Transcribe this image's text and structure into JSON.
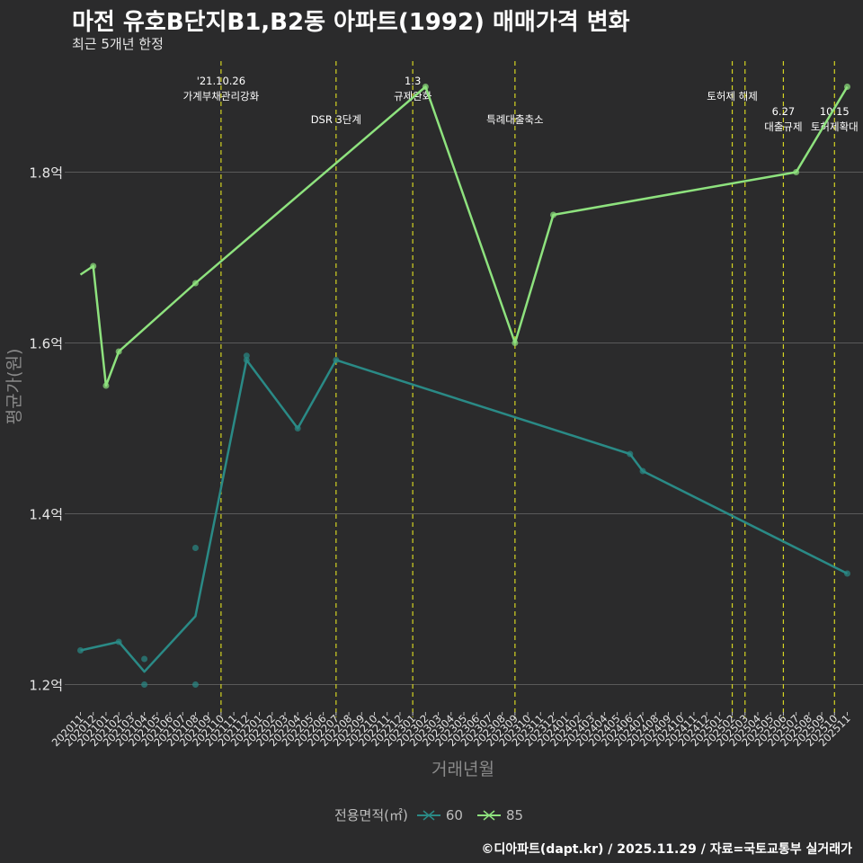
{
  "title": "마전 유호B단지B1,B2동 아파트(1992) 매매가격 변화",
  "subtitle": "최근 5개년 한정",
  "caption": "©디아파트(dapt.kr) / 2025.11.29 / 자료=국토교통부 실거래가",
  "colors": {
    "background": "#2b2b2c",
    "grid": "#5a5a5a",
    "series60": "#2a8a86",
    "series85": "#8ee27e",
    "policy": "#d4d422"
  },
  "chart_data": {
    "type": "line",
    "title": "마전 유호B단지B1,B2동 아파트(1992) 매매가격 변화",
    "xlabel": "거래년월",
    "ylabel": "평균가(원)",
    "legend_title": "전용면적(㎡)",
    "ylim": [
      1.17,
      1.93
    ],
    "yticks": [
      1.2,
      1.4,
      1.6,
      1.8
    ],
    "ytick_labels": [
      "1.2억",
      "1.4억",
      "1.6억",
      "1.8억"
    ],
    "x_categories": [
      "202011",
      "202012",
      "202101",
      "202102",
      "202103",
      "202104",
      "202105",
      "202106",
      "202107",
      "202108",
      "202109",
      "202110",
      "202111",
      "202112",
      "202201",
      "202202",
      "202203",
      "202204",
      "202205",
      "202206",
      "202207",
      "202208",
      "202209",
      "202210",
      "202211",
      "202212",
      "202301",
      "202302",
      "202303",
      "202304",
      "202305",
      "202306",
      "202307",
      "202308",
      "202309",
      "202310",
      "202311",
      "202312",
      "202401",
      "202402",
      "202403",
      "202404",
      "202405",
      "202406",
      "202407",
      "202408",
      "202409",
      "202410",
      "202411",
      "202412",
      "202501",
      "202502",
      "202503",
      "202504",
      "202505",
      "202506",
      "202507",
      "202508",
      "202509",
      "202510",
      "202511"
    ],
    "series": [
      {
        "name": "60",
        "line": [
          [
            "202011",
            1.24
          ],
          [
            "202102",
            1.25
          ],
          [
            "202104",
            1.215
          ],
          [
            "202108",
            1.28
          ],
          [
            "202112",
            1.58
          ],
          [
            "202204",
            1.5
          ],
          [
            "202207",
            1.58
          ],
          [
            "202406",
            1.47
          ],
          [
            "202407",
            1.45
          ],
          [
            "202511",
            1.33
          ]
        ],
        "points": [
          [
            "202011",
            1.24
          ],
          [
            "202102",
            1.25
          ],
          [
            "202104",
            1.23
          ],
          [
            "202104",
            1.2
          ],
          [
            "202108",
            1.36
          ],
          [
            "202108",
            1.2
          ],
          [
            "202112",
            1.585
          ],
          [
            "202112",
            1.58
          ],
          [
            "202204",
            1.5
          ],
          [
            "202207",
            1.58
          ],
          [
            "202406",
            1.47
          ],
          [
            "202407",
            1.45
          ],
          [
            "202511",
            1.33
          ]
        ]
      },
      {
        "name": "85",
        "line": [
          [
            "202011",
            1.68
          ],
          [
            "202012",
            1.69
          ],
          [
            "202101",
            1.55
          ],
          [
            "202102",
            1.59
          ],
          [
            "202108",
            1.67
          ],
          [
            "202302",
            1.9
          ],
          [
            "202309",
            1.6
          ],
          [
            "202312",
            1.75
          ],
          [
            "202507",
            1.8
          ],
          [
            "202511",
            1.9
          ]
        ],
        "points": [
          [
            "202012",
            1.69
          ],
          [
            "202101",
            1.55
          ],
          [
            "202102",
            1.59
          ],
          [
            "202108",
            1.67
          ],
          [
            "202302",
            1.9
          ],
          [
            "202309",
            1.6
          ],
          [
            "202312",
            1.75
          ],
          [
            "202507",
            1.8
          ],
          [
            "202511",
            1.9
          ]
        ]
      }
    ],
    "policy_events": [
      {
        "month": "202110",
        "line1": "'21.10.26",
        "line2": "가계부채관리강화",
        "row": 1
      },
      {
        "month": "202207",
        "line1": "",
        "line2": "DSR 3단계",
        "row": 2
      },
      {
        "month": "202301",
        "line1": "1.3",
        "line2": "규제완화",
        "row": 1
      },
      {
        "month": "202309",
        "line1": "",
        "line2": "특례대출축소",
        "row": 2
      },
      {
        "month": "202502",
        "line1": "",
        "line2": "토허제 해제",
        "row": 1
      },
      {
        "month": "202503",
        "line1": "",
        "line2": "",
        "row": 0
      },
      {
        "month": "202506",
        "line1": "6.27",
        "line2": "대출규제",
        "row": 3
      },
      {
        "month": "202510",
        "line1": "10.15",
        "line2": "토허제확대",
        "row": 3
      }
    ]
  }
}
